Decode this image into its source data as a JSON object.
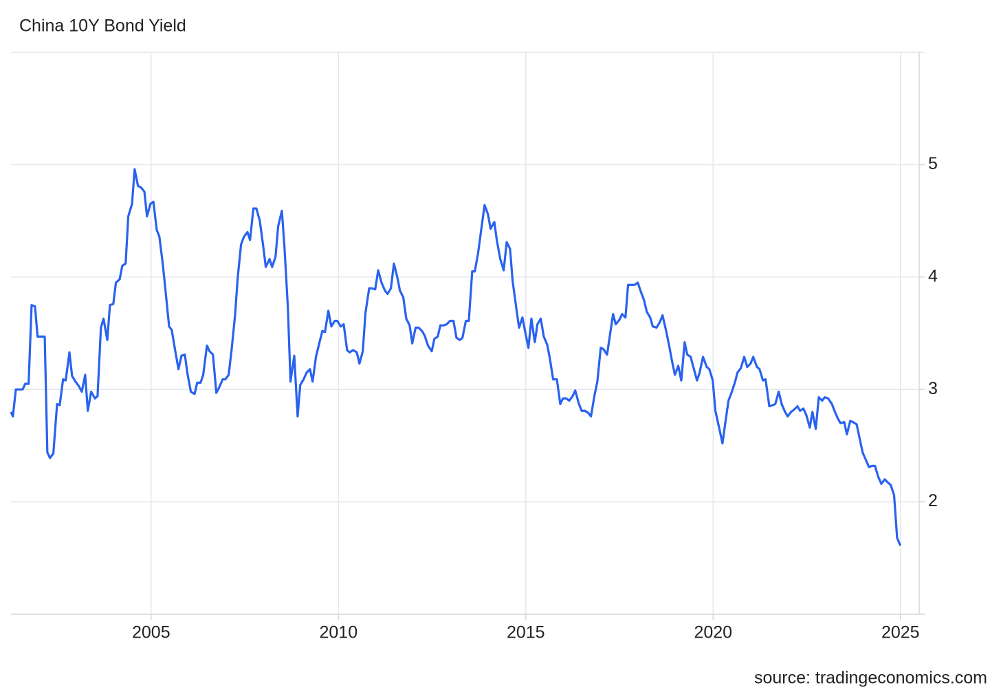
{
  "chart_data": {
    "type": "line",
    "title": "China 10Y Bond Yield",
    "source": "source: tradingeconomics.com",
    "xlim": [
      2001.26,
      2025.5
    ],
    "xticks": [
      2005,
      2010,
      2015,
      2020,
      2025
    ],
    "ylim": [
      1,
      6
    ],
    "yticks": [
      2,
      3,
      4,
      5
    ],
    "grid": true,
    "series": [
      {
        "color": "#2962ef",
        "x": [
          2001.26,
          2001.31,
          2001.39,
          2001.48,
          2001.57,
          2001.64,
          2001.73,
          2001.81,
          2001.9,
          2001.97,
          2002.06,
          2002.16,
          2002.23,
          2002.3,
          2002.39,
          2002.49,
          2002.56,
          2002.65,
          2002.72,
          2002.82,
          2002.89,
          2002.98,
          2003.07,
          2003.15,
          2003.24,
          2003.31,
          2003.4,
          2003.5,
          2003.57,
          2003.66,
          2003.73,
          2003.83,
          2003.9,
          2003.99,
          2004.06,
          2004.16,
          2004.23,
          2004.32,
          2004.39,
          2004.49,
          2004.56,
          2004.65,
          2004.72,
          2004.82,
          2004.89,
          2004.98,
          2005.06,
          2005.15,
          2005.22,
          2005.31,
          2005.39,
          2005.48,
          2005.55,
          2005.64,
          2005.73,
          2005.81,
          2005.9,
          2005.97,
          2006.06,
          2006.16,
          2006.23,
          2006.32,
          2006.39,
          2006.49,
          2006.56,
          2006.65,
          2006.74,
          2006.82,
          2006.91,
          2006.98,
          2007.07,
          2007.15,
          2007.24,
          2007.31,
          2007.4,
          2007.48,
          2007.57,
          2007.64,
          2007.73,
          2007.81,
          2007.9,
          2007.99,
          2008.06,
          2008.16,
          2008.23,
          2008.32,
          2008.39,
          2008.49,
          2008.56,
          2008.65,
          2008.72,
          2008.82,
          2008.91,
          2008.98,
          2009.07,
          2009.15,
          2009.24,
          2009.31,
          2009.4,
          2009.48,
          2009.57,
          2009.64,
          2009.73,
          2009.81,
          2009.9,
          2009.97,
          2010.06,
          2010.14,
          2010.23,
          2010.3,
          2010.39,
          2010.49,
          2010.56,
          2010.65,
          2010.72,
          2010.82,
          2010.89,
          2010.98,
          2011.06,
          2011.15,
          2011.24,
          2011.31,
          2011.4,
          2011.48,
          2011.57,
          2011.64,
          2011.73,
          2011.81,
          2011.9,
          2011.97,
          2012.06,
          2012.14,
          2012.23,
          2012.3,
          2012.39,
          2012.49,
          2012.56,
          2012.65,
          2012.72,
          2012.82,
          2012.89,
          2012.98,
          2013.07,
          2013.15,
          2013.24,
          2013.31,
          2013.4,
          2013.48,
          2013.57,
          2013.64,
          2013.73,
          2013.81,
          2013.9,
          2013.99,
          2014.06,
          2014.16,
          2014.23,
          2014.32,
          2014.41,
          2014.49,
          2014.58,
          2014.65,
          2014.74,
          2014.82,
          2014.91,
          2014.98,
          2015.07,
          2015.15,
          2015.24,
          2015.31,
          2015.4,
          2015.48,
          2015.57,
          2015.64,
          2015.73,
          2015.83,
          2015.92,
          2015.99,
          2016.08,
          2016.16,
          2016.25,
          2016.32,
          2016.41,
          2016.49,
          2016.58,
          2016.67,
          2016.74,
          2016.83,
          2016.91,
          2017.0,
          2017.07,
          2017.17,
          2017.24,
          2017.33,
          2017.4,
          2017.5,
          2017.57,
          2017.66,
          2017.73,
          2017.83,
          2017.9,
          2017.99,
          2018.06,
          2018.16,
          2018.23,
          2018.32,
          2018.39,
          2018.49,
          2018.58,
          2018.65,
          2018.74,
          2018.82,
          2018.91,
          2018.98,
          2019.07,
          2019.15,
          2019.24,
          2019.31,
          2019.4,
          2019.48,
          2019.57,
          2019.64,
          2019.73,
          2019.83,
          2019.9,
          2019.99,
          2020.06,
          2020.16,
          2020.25,
          2020.32,
          2020.41,
          2020.49,
          2020.58,
          2020.65,
          2020.74,
          2020.83,
          2020.91,
          2021.0,
          2021.07,
          2021.17,
          2021.24,
          2021.33,
          2021.4,
          2021.5,
          2021.59,
          2021.66,
          2021.75,
          2021.83,
          2021.92,
          2021.99,
          2022.08,
          2022.16,
          2022.25,
          2022.32,
          2022.41,
          2022.49,
          2022.58,
          2022.65,
          2022.74,
          2022.82,
          2022.91,
          2022.98,
          2023.07,
          2023.17,
          2023.24,
          2023.33,
          2023.4,
          2023.5,
          2023.57,
          2023.66,
          2023.73,
          2023.83,
          2023.9,
          2023.99,
          2024.08,
          2024.16,
          2024.25,
          2024.32,
          2024.41,
          2024.49,
          2024.58,
          2024.67,
          2024.74,
          2024.83,
          2024.91,
          2025.0
        ],
        "values": [
          2.8,
          2.76,
          3.0,
          3.0,
          3.0,
          3.05,
          3.05,
          3.75,
          3.74,
          3.47,
          3.47,
          3.47,
          2.44,
          2.39,
          2.43,
          2.87,
          2.86,
          3.09,
          3.08,
          3.33,
          3.12,
          3.07,
          3.03,
          2.98,
          3.13,
          2.81,
          2.98,
          2.92,
          2.94,
          3.55,
          3.63,
          3.44,
          3.75,
          3.76,
          3.95,
          3.98,
          4.1,
          4.12,
          4.54,
          4.65,
          4.96,
          4.81,
          4.8,
          4.76,
          4.54,
          4.65,
          4.67,
          4.42,
          4.36,
          4.12,
          3.86,
          3.56,
          3.53,
          3.35,
          3.18,
          3.3,
          3.31,
          3.14,
          2.98,
          2.96,
          3.06,
          3.06,
          3.13,
          3.39,
          3.34,
          3.31,
          2.97,
          3.02,
          3.09,
          3.09,
          3.13,
          3.36,
          3.66,
          3.99,
          4.29,
          4.36,
          4.4,
          4.33,
          4.61,
          4.61,
          4.5,
          4.28,
          4.09,
          4.16,
          4.09,
          4.18,
          4.45,
          4.59,
          4.26,
          3.73,
          3.07,
          3.3,
          2.76,
          3.04,
          3.09,
          3.15,
          3.18,
          3.07,
          3.29,
          3.4,
          3.52,
          3.51,
          3.7,
          3.56,
          3.61,
          3.61,
          3.56,
          3.58,
          3.35,
          3.33,
          3.35,
          3.33,
          3.23,
          3.34,
          3.68,
          3.9,
          3.9,
          3.89,
          4.06,
          3.95,
          3.88,
          3.85,
          3.9,
          4.12,
          4.0,
          3.88,
          3.82,
          3.63,
          3.57,
          3.41,
          3.55,
          3.55,
          3.52,
          3.48,
          3.39,
          3.34,
          3.45,
          3.47,
          3.57,
          3.57,
          3.58,
          3.61,
          3.61,
          3.46,
          3.44,
          3.46,
          3.61,
          3.61,
          4.05,
          4.05,
          4.22,
          4.42,
          4.64,
          4.56,
          4.43,
          4.49,
          4.32,
          4.16,
          4.06,
          4.31,
          4.25,
          3.96,
          3.74,
          3.55,
          3.64,
          3.52,
          3.37,
          3.63,
          3.42,
          3.58,
          3.63,
          3.47,
          3.4,
          3.28,
          3.09,
          3.09,
          2.87,
          2.92,
          2.92,
          2.9,
          2.94,
          2.99,
          2.88,
          2.81,
          2.81,
          2.79,
          2.76,
          2.94,
          3.07,
          3.37,
          3.36,
          3.31,
          3.47,
          3.67,
          3.58,
          3.62,
          3.67,
          3.64,
          3.93,
          3.93,
          3.93,
          3.95,
          3.88,
          3.79,
          3.69,
          3.64,
          3.56,
          3.55,
          3.6,
          3.66,
          3.53,
          3.4,
          3.24,
          3.13,
          3.21,
          3.08,
          3.42,
          3.31,
          3.29,
          3.19,
          3.08,
          3.15,
          3.29,
          3.2,
          3.18,
          3.08,
          2.81,
          2.66,
          2.52,
          2.69,
          2.9,
          2.97,
          3.06,
          3.15,
          3.19,
          3.29,
          3.2,
          3.23,
          3.29,
          3.2,
          3.18,
          3.08,
          3.09,
          2.85,
          2.86,
          2.87,
          2.98,
          2.87,
          2.8,
          2.76,
          2.8,
          2.82,
          2.85,
          2.81,
          2.83,
          2.77,
          2.66,
          2.8,
          2.65,
          2.93,
          2.9,
          2.93,
          2.92,
          2.87,
          2.81,
          2.74,
          2.7,
          2.71,
          2.6,
          2.72,
          2.71,
          2.69,
          2.58,
          2.44,
          2.37,
          2.31,
          2.32,
          2.32,
          2.22,
          2.16,
          2.2,
          2.17,
          2.15,
          2.06,
          1.68,
          1.61
        ]
      }
    ]
  }
}
